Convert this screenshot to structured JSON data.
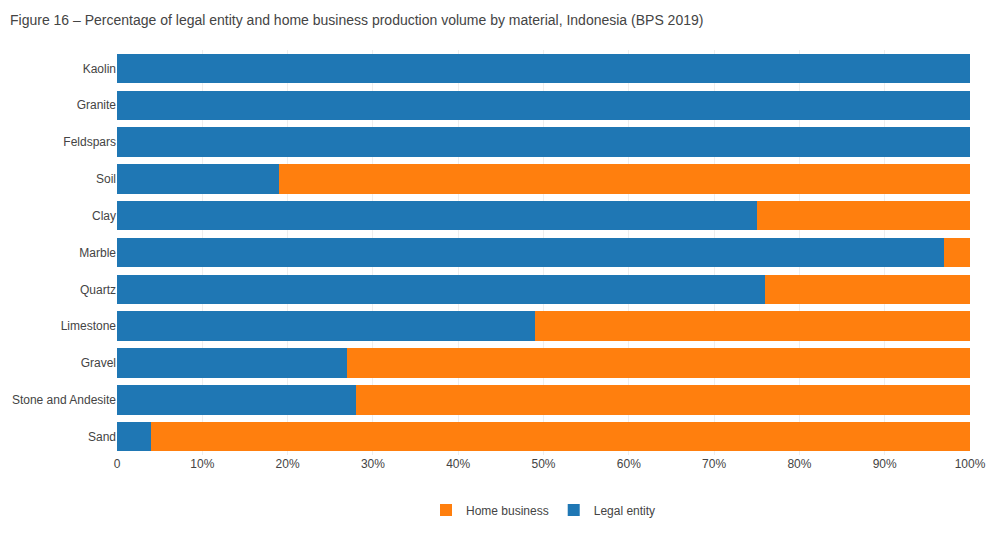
{
  "chart_data": {
    "type": "bar",
    "orientation": "horizontal",
    "stacked": true,
    "title": "Figure 16 – Percentage of legal entity and home business production volume by material, Indonesia (BPS 2019)",
    "categories": [
      "Sand",
      "Stone and Andesite",
      "Gravel",
      "Limestone",
      "Quartz",
      "Marble",
      "Clay",
      "Soil",
      "Feldspars",
      "Granite",
      "Kaolin"
    ],
    "series": [
      {
        "name": "Legal entity",
        "values": [
          4,
          28,
          27,
          49,
          76,
          97,
          75,
          19,
          100,
          100,
          100
        ]
      },
      {
        "name": "Home business",
        "values": [
          96,
          72,
          73,
          51,
          24,
          3,
          25,
          81,
          0,
          0,
          0
        ]
      }
    ],
    "xlim": [
      0,
      100
    ],
    "xticks": [
      0,
      {
        "value": 10,
        "label": "10%"
      },
      {
        "value": 20,
        "label": "20%"
      },
      {
        "value": 30,
        "label": "30%"
      },
      {
        "value": 40,
        "label": "40%"
      },
      {
        "value": 50,
        "label": "50%"
      },
      {
        "value": 60,
        "label": "60%"
      },
      {
        "value": 70,
        "label": "70%"
      },
      {
        "value": 80,
        "label": "80%"
      },
      {
        "value": 90,
        "label": "90%"
      },
      {
        "value": 100,
        "label": "100%"
      }
    ],
    "grid": true,
    "legend": "bottom"
  }
}
